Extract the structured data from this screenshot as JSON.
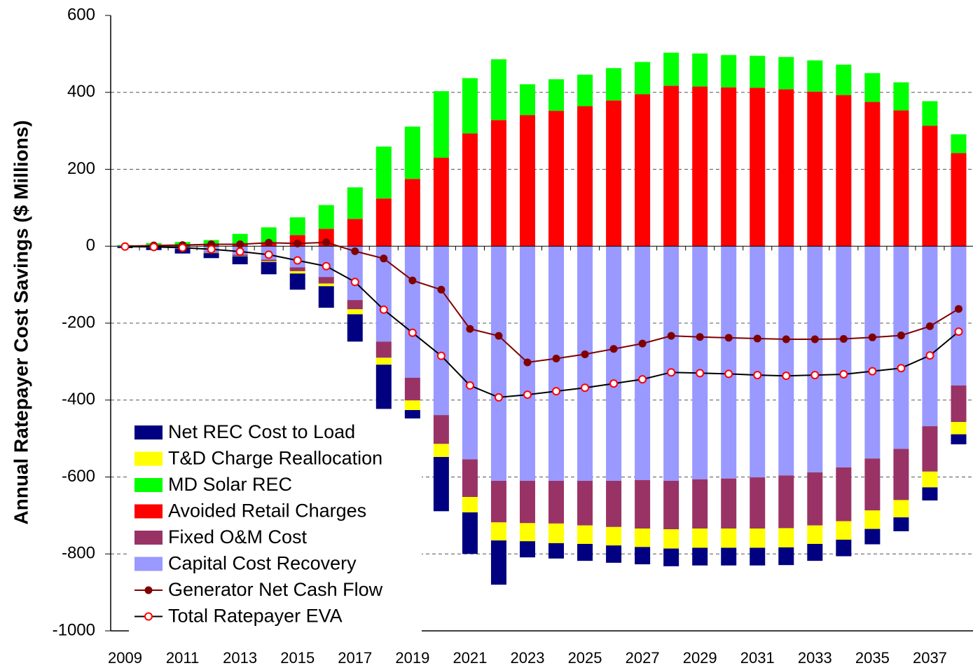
{
  "chart_data": {
    "type": "bar",
    "y_label": "Annual Ratepayer Cost Savings ($ Millions)",
    "categories": [
      "2009",
      null,
      "2011",
      null,
      "2013",
      null,
      "2015",
      null,
      "2017",
      null,
      "2019",
      null,
      "2021",
      null,
      "2023",
      null,
      "2025",
      null,
      "2027",
      null,
      "2029",
      null,
      "2031",
      null,
      "2033",
      null,
      "2035",
      null,
      "2037",
      null
    ],
    "ylim": [
      -1000,
      600
    ],
    "yticks": [
      -1000,
      -800,
      -600,
      -400,
      -200,
      0,
      200,
      400,
      600
    ],
    "grid": true,
    "stacked": true,
    "legend": "lower left",
    "series": [
      {
        "name": "Net REC Cost to Load",
        "type": "bar",
        "color": "#000080",
        "values": [
          -3,
          -6,
          -12,
          -13,
          -21,
          -32,
          -42,
          -56,
          -71,
          -115,
          -111,
          -141,
          -108,
          -115,
          -42,
          -40,
          -44,
          -45,
          -45,
          -46,
          -46,
          -46,
          -46,
          -46,
          -44,
          -43,
          -40,
          -36,
          -34,
          -26
        ]
      },
      {
        "name": "T&D Charge Reallocation",
        "type": "bar",
        "color": "#ffff00",
        "values": [
          0,
          0,
          0,
          -1,
          -1,
          -2,
          -6,
          -7,
          -13,
          -18,
          -25,
          -34,
          -40,
          -47,
          -47,
          -51,
          -48,
          -48,
          -48,
          -50,
          -50,
          -50,
          -50,
          -50,
          -48,
          -48,
          -48,
          -45,
          -41,
          -32
        ]
      },
      {
        "name": "MD Solar REC",
        "type": "bar",
        "color": "#00ff00",
        "values": [
          2,
          6,
          8,
          12,
          26,
          39,
          46,
          62,
          82,
          135,
          136,
          173,
          144,
          158,
          80,
          82,
          82,
          84,
          84,
          86,
          86,
          84,
          83,
          84,
          81,
          79,
          75,
          73,
          64,
          49
        ]
      },
      {
        "name": "Avoided Retail Charges",
        "type": "bar",
        "color": "#ff0000",
        "values": [
          1,
          2,
          3,
          4,
          6,
          10,
          29,
          45,
          71,
          124,
          175,
          230,
          293,
          328,
          341,
          352,
          364,
          379,
          395,
          417,
          415,
          413,
          412,
          408,
          402,
          393,
          375,
          353,
          313,
          242
        ]
      },
      {
        "name": "Fixed O&M Cost",
        "type": "bar",
        "color": "#993366",
        "values": [
          0,
          0,
          -1,
          -2,
          -3,
          -4,
          -10,
          -17,
          -24,
          -42,
          -59,
          -75,
          -98,
          -108,
          -110,
          -111,
          -116,
          -120,
          -126,
          -126,
          -128,
          -130,
          -133,
          -137,
          -138,
          -140,
          -135,
          -133,
          -118,
          -95
        ]
      },
      {
        "name": "Capital Cost Recovery",
        "type": "bar",
        "color": "#9999ff",
        "values": [
          -2,
          -4,
          -6,
          -15,
          -22,
          -35,
          -55,
          -80,
          -140,
          -248,
          -342,
          -439,
          -554,
          -610,
          -610,
          -610,
          -610,
          -610,
          -608,
          -610,
          -606,
          -604,
          -601,
          -596,
          -588,
          -575,
          -552,
          -527,
          -468,
          -362
        ]
      },
      {
        "name": "Generator Net Cash Flow",
        "type": "line",
        "color": "#800000",
        "values": [
          0,
          2,
          3,
          5,
          5,
          9,
          7,
          10,
          -13,
          -32,
          -89,
          -113,
          -215,
          -233,
          -302,
          -292,
          -281,
          -267,
          -253,
          -233,
          -236,
          -238,
          -240,
          -242,
          -242,
          -241,
          -237,
          -232,
          -208,
          -163
        ]
      },
      {
        "name": "Total Ratepayer EVA",
        "type": "line",
        "color": "#000000",
        "marker_color": "#ff0000",
        "values": [
          -1,
          -2,
          -4,
          -8,
          -14,
          -22,
          -37,
          -52,
          -93,
          -165,
          -225,
          -285,
          -362,
          -393,
          -386,
          -377,
          -368,
          -357,
          -346,
          -328,
          -330,
          -332,
          -335,
          -337,
          -335,
          -333,
          -325,
          -317,
          -284,
          -222
        ]
      }
    ]
  }
}
